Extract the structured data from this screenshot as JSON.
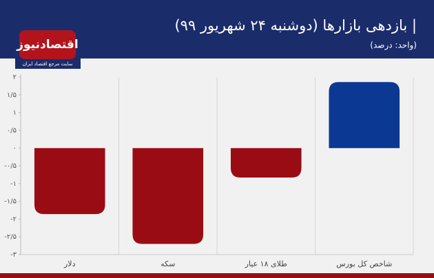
{
  "logo": {
    "name": "اقتصادنیوز",
    "tagline": "سایت مرجع اقتصاد ایران"
  },
  "chart_data": {
    "type": "bar",
    "title": "| بازدهی بازارها (دوشنبه ۲۴ شهریور ۹۹)",
    "subtitle": "(واحد: درصد)",
    "categories": [
      "دلار",
      "سکه",
      "طلای ۱۸ عیار",
      "شاخص کل بورس"
    ],
    "values": [
      -1.86,
      -2.7,
      -0.83,
      1.86
    ],
    "colors": [
      "#9a0c14",
      "#9a0c14",
      "#9a0c14",
      "#0b3893"
    ],
    "ylim": [
      -3,
      2
    ],
    "yticks": [
      {
        "value": 2,
        "label": "۲"
      },
      {
        "value": 1.5,
        "label": "۱/۵"
      },
      {
        "value": 1,
        "label": "۱"
      },
      {
        "value": 0.5,
        "label": "۰/۵"
      },
      {
        "value": 0,
        "label": "۰"
      },
      {
        "value": -0.5,
        "label": "-۰/۵"
      },
      {
        "value": -1,
        "label": "-۱"
      },
      {
        "value": -1.5,
        "label": "-۱/۵"
      },
      {
        "value": -2,
        "label": "-۲"
      },
      {
        "value": -2.5,
        "label": "-۲/۵"
      },
      {
        "value": -3,
        "label": "-۳"
      }
    ],
    "grid": "x"
  }
}
